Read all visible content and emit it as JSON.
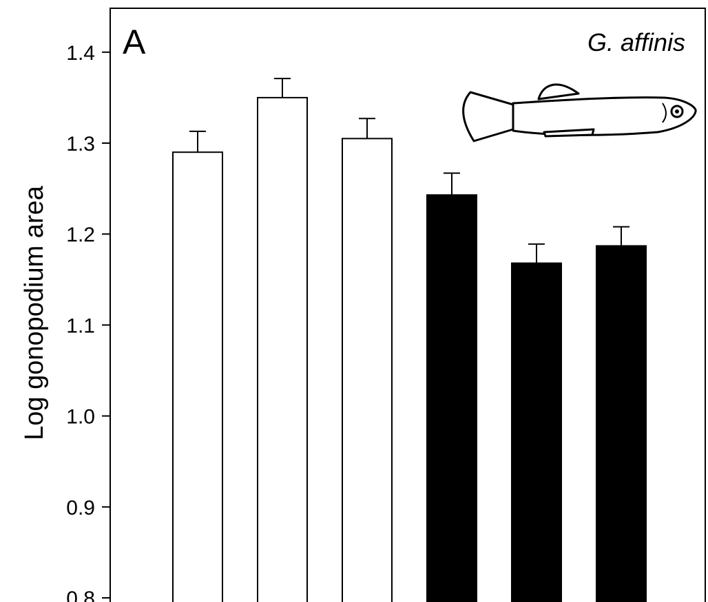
{
  "panel_label": "A",
  "species_label": "G. affinis",
  "fish_icon": "mosquitofish-drawing-icon",
  "chart_data": {
    "type": "bar",
    "title": "",
    "xlabel": "",
    "ylabel": "Log gonopodium area",
    "ylim": [
      0.8,
      1.45
    ],
    "yticks": [
      0.8,
      0.9,
      1.0,
      1.1,
      1.2,
      1.3,
      1.4
    ],
    "ytick_labels": [
      "0.8",
      "0.9",
      "1.0",
      "1.1",
      "1.2",
      "1.3",
      "1.4"
    ],
    "grid": false,
    "values": [
      1.29,
      1.35,
      1.305,
      1.243,
      1.168,
      1.187
    ],
    "errors": [
      0.023,
      0.021,
      0.022,
      0.024,
      0.021,
      0.021
    ],
    "colors": [
      "#ffffff",
      "#ffffff",
      "#ffffff",
      "#000000",
      "#000000",
      "#000000"
    ]
  }
}
